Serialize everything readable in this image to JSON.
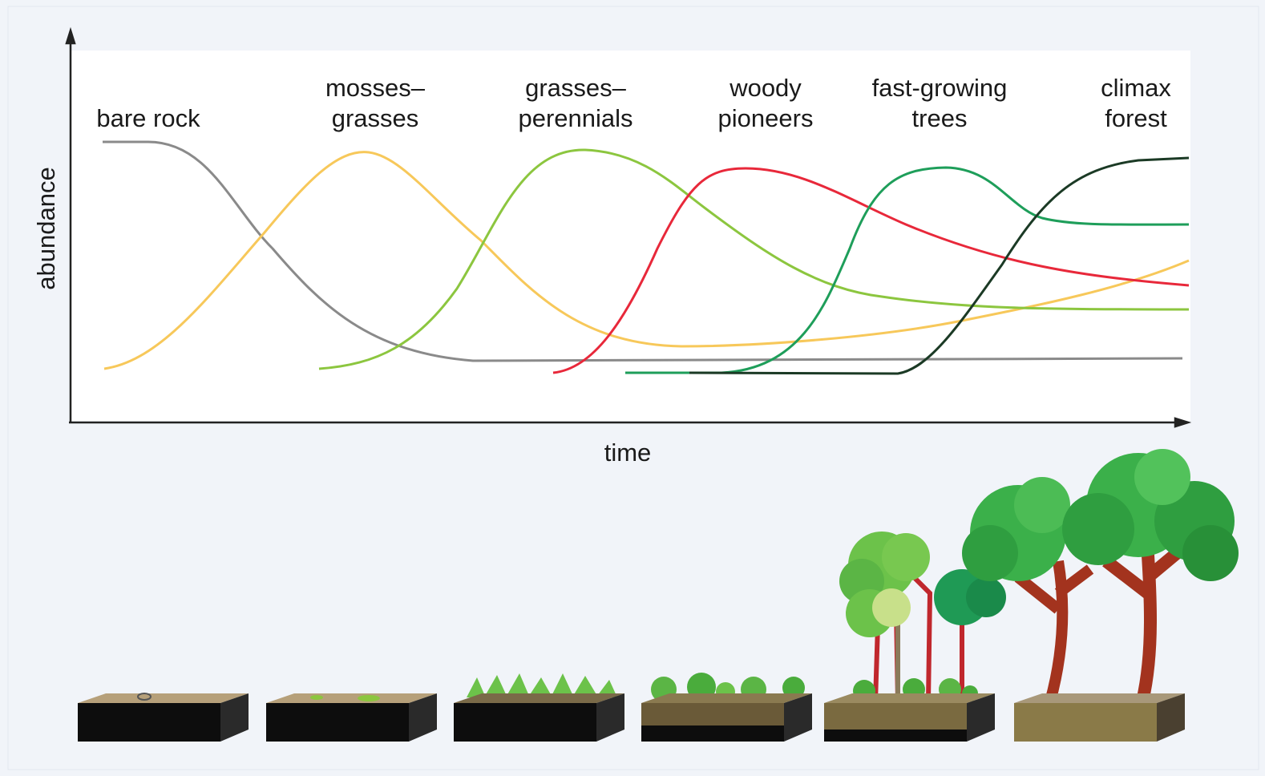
{
  "axes": {
    "y_label": "abundance",
    "x_label": "time"
  },
  "stages": [
    {
      "label_lines": [
        "bare rock"
      ]
    },
    {
      "label_lines": [
        "mosses–",
        "grasses"
      ]
    },
    {
      "label_lines": [
        "grasses–",
        "perennials"
      ]
    },
    {
      "label_lines": [
        "woody",
        "pioneers"
      ]
    },
    {
      "label_lines": [
        "fast-growing",
        "trees"
      ]
    },
    {
      "label_lines": [
        "climax",
        "forest"
      ]
    }
  ]
}
